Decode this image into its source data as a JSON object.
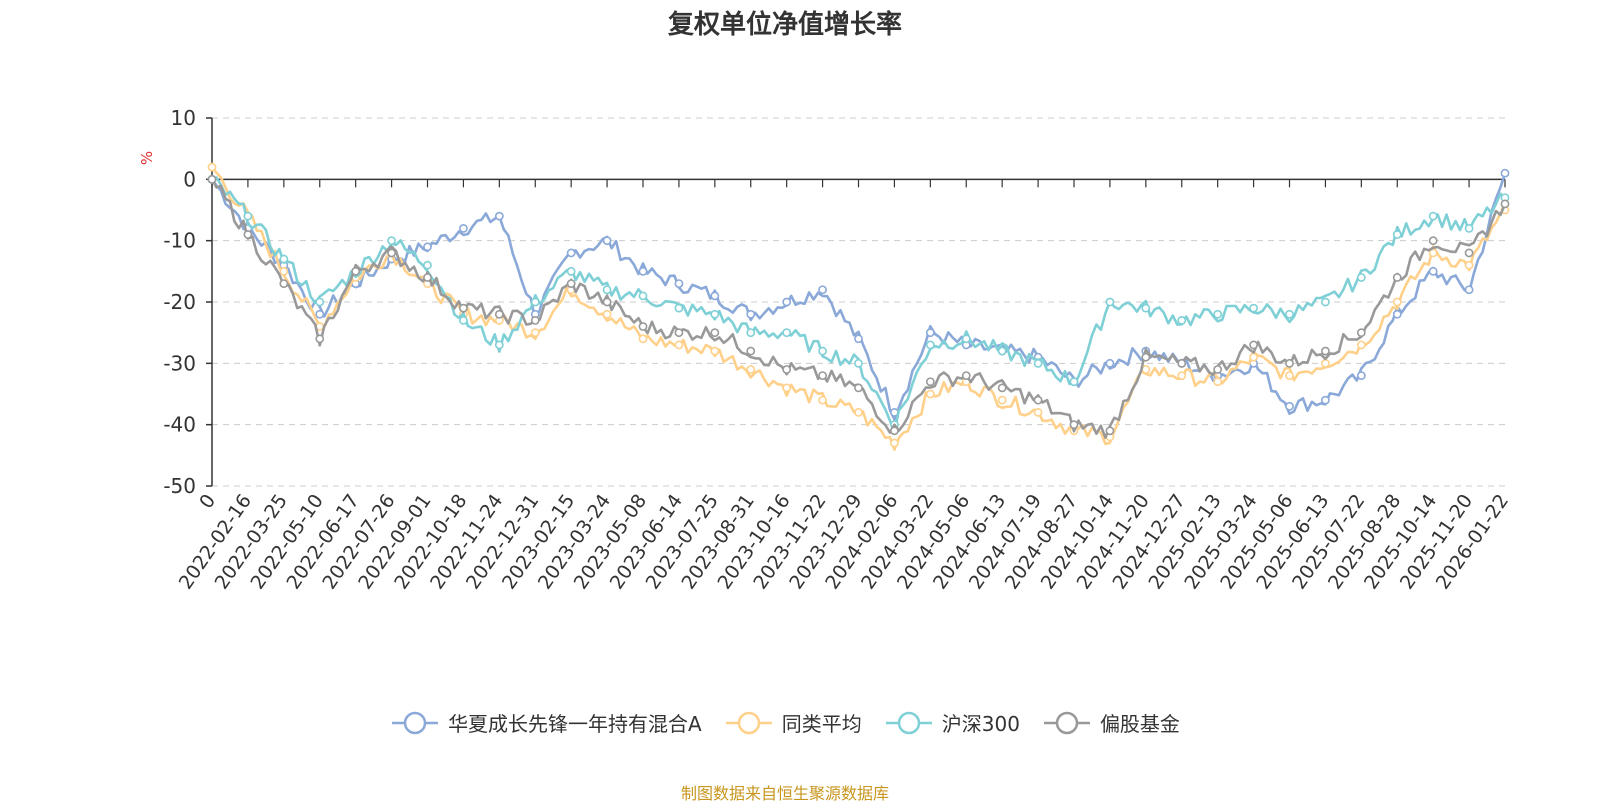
{
  "chart_data": {
    "type": "line",
    "title": "复权单位净值增长率",
    "ylabel": "%",
    "ylim": [
      -50,
      10
    ],
    "yticks": [
      10,
      0,
      -10,
      -20,
      -30,
      -40,
      -50
    ],
    "grid": true,
    "legend_position": "bottom",
    "x": [
      "0",
      "2022-02-16",
      "2022-03-25",
      "2022-05-10",
      "2022-06-17",
      "2022-07-26",
      "2022-09-01",
      "2022-10-18",
      "2022-11-24",
      "2022-12-31",
      "2023-02-15",
      "2023-03-24",
      "2023-05-08",
      "2023-06-14",
      "2023-07-25",
      "2023-08-31",
      "2023-10-16",
      "2023-11-22",
      "2023-12-29",
      "2024-02-06",
      "2024-03-22",
      "2024-05-06",
      "2024-06-13",
      "2024-07-19",
      "2024-08-27",
      "2024-10-14",
      "2024-11-20",
      "2024-12-27",
      "2025-02-13",
      "2025-03-24",
      "2025-05-06",
      "2025-06-13",
      "2025-07-22",
      "2025-08-28",
      "2025-10-14",
      "2025-11-20",
      "2026-01-22"
    ],
    "series": [
      {
        "name": "华夏成长先锋一年持有混合A",
        "color": "#8aa8d8",
        "values": [
          0,
          -8,
          -14,
          -22,
          -17,
          -13,
          -11,
          -8,
          -6,
          -22,
          -12,
          -10,
          -15,
          -17,
          -19,
          -22,
          -20,
          -18,
          -26,
          -38,
          -25,
          -27,
          -28,
          -29,
          -33,
          -30,
          -28,
          -30,
          -32,
          -30,
          -37,
          -36,
          -32,
          -22,
          -15,
          -18,
          1
        ]
      },
      {
        "name": "同类平均",
        "color": "#ffd08a",
        "values": [
          2,
          -6,
          -15,
          -24,
          -16,
          -12,
          -17,
          -22,
          -23,
          -25,
          -18,
          -22,
          -26,
          -27,
          -28,
          -31,
          -34,
          -36,
          -38,
          -43,
          -35,
          -33,
          -36,
          -38,
          -41,
          -42,
          -31,
          -32,
          -33,
          -29,
          -32,
          -30,
          -27,
          -20,
          -12,
          -14,
          -5
        ]
      },
      {
        "name": "沪深300",
        "color": "#7fd0d6",
        "values": [
          0,
          -6,
          -13,
          -20,
          -15,
          -10,
          -14,
          -23,
          -27,
          -20,
          -15,
          -18,
          -19,
          -21,
          -22,
          -25,
          -25,
          -28,
          -30,
          -40,
          -27,
          -26,
          -28,
          -30,
          -33,
          -20,
          -21,
          -23,
          -22,
          -21,
          -22,
          -20,
          -16,
          -9,
          -6,
          -8,
          -3
        ]
      },
      {
        "name": "偏股基金",
        "color": "#999999",
        "values": [
          0,
          -9,
          -17,
          -26,
          -15,
          -12,
          -16,
          -21,
          -22,
          -23,
          -17,
          -20,
          -24,
          -25,
          -25,
          -28,
          -31,
          -32,
          -34,
          -41,
          -33,
          -32,
          -34,
          -36,
          -40,
          -41,
          -29,
          -30,
          -31,
          -27,
          -30,
          -28,
          -25,
          -16,
          -10,
          -12,
          -4
        ]
      }
    ]
  },
  "source_note": "制图数据来自恒生聚源数据库"
}
